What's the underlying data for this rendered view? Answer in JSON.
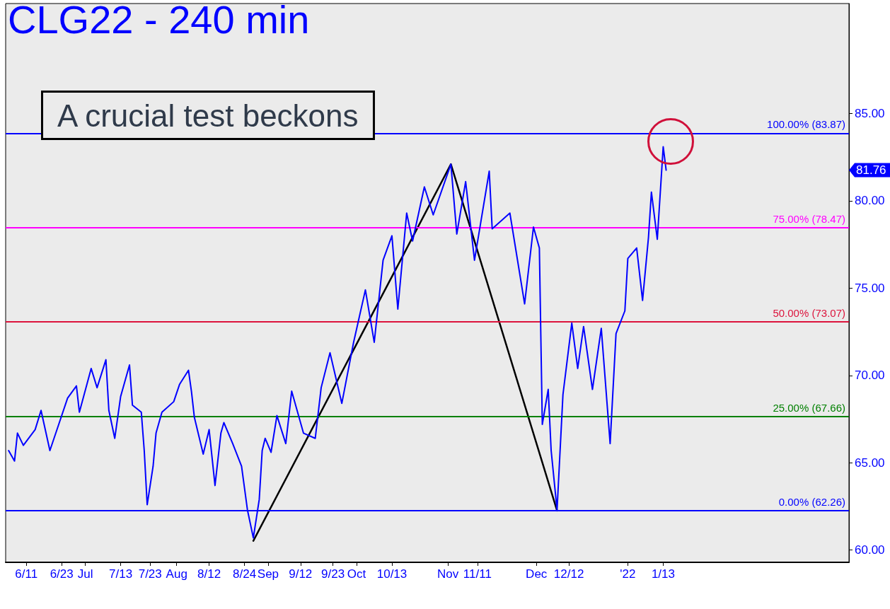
{
  "chart_data": {
    "type": "line",
    "title": "CLG22 - 240 min",
    "annotations": [
      "A crucial test beckons",
      "81.76"
    ],
    "xlim": [
      "2021-06-04",
      "2022-03-17"
    ],
    "xticks": [
      {
        "value": "2021-06-11",
        "label": "6/11"
      },
      {
        "value": "2021-06-23",
        "label": "6/23"
      },
      {
        "value": "2021-07-01",
        "label": "Jul"
      },
      {
        "value": "2021-07-13",
        "label": "7/13"
      },
      {
        "value": "2021-07-23",
        "label": "7/23"
      },
      {
        "value": "2021-08-01",
        "label": "Aug"
      },
      {
        "value": "2021-08-12",
        "label": "8/12"
      },
      {
        "value": "2021-08-24",
        "label": "8/24"
      },
      {
        "value": "2021-09-01",
        "label": "Sep"
      },
      {
        "value": "2021-09-12",
        "label": "9/12"
      },
      {
        "value": "2021-09-23",
        "label": "9/23"
      },
      {
        "value": "2021-10-01",
        "label": "Oct"
      },
      {
        "value": "2021-10-13",
        "label": "10/13"
      },
      {
        "value": "2021-11-01",
        "label": "Nov"
      },
      {
        "value": "2021-11-11",
        "label": "11/11"
      },
      {
        "value": "2021-12-01",
        "label": "Dec"
      },
      {
        "value": "2021-12-12",
        "label": "12/12"
      },
      {
        "value": "2022-01-01",
        "label": "'22"
      },
      {
        "value": "2022-01-13",
        "label": "1/13"
      }
    ],
    "ylim": [
      59.3,
      91.3
    ],
    "yticks": [
      {
        "value": 60,
        "label": "60.00"
      },
      {
        "value": 65,
        "label": "65.00"
      },
      {
        "value": 70,
        "label": "70.00"
      },
      {
        "value": 75,
        "label": "75.00"
      },
      {
        "value": 80,
        "label": "80.00"
      },
      {
        "value": 85,
        "label": "85.00"
      }
    ],
    "series": [
      {
        "color": "#0000ff",
        "x": [
          "2021-06-05",
          "2021-06-07",
          "2021-06-08",
          "2021-06-10",
          "2021-06-14",
          "2021-06-16",
          "2021-06-19",
          "2021-06-22",
          "2021-06-25",
          "2021-06-28",
          "2021-06-29",
          "2021-07-03",
          "2021-07-05",
          "2021-07-08",
          "2021-07-09",
          "2021-07-11",
          "2021-07-13",
          "2021-07-16",
          "2021-07-17",
          "2021-07-20",
          "2021-07-21",
          "2021-07-22",
          "2021-07-24",
          "2021-07-25",
          "2021-07-27",
          "2021-07-31",
          "2021-08-02",
          "2021-08-05",
          "2021-08-06",
          "2021-08-07",
          "2021-08-10",
          "2021-08-12",
          "2021-08-14",
          "2021-08-16",
          "2021-08-17",
          "2021-08-20",
          "2021-08-23",
          "2021-08-25",
          "2021-08-27",
          "2021-08-29",
          "2021-08-30",
          "2021-08-31",
          "2021-09-02",
          "2021-09-04",
          "2021-09-07",
          "2021-09-09",
          "2021-09-13",
          "2021-09-17",
          "2021-09-19",
          "2021-09-22",
          "2021-09-26",
          "2021-09-30",
          "2021-10-04",
          "2021-10-07",
          "2021-10-10",
          "2021-10-13",
          "2021-10-15",
          "2021-10-18",
          "2021-10-20",
          "2021-10-24",
          "2021-10-27",
          "2021-11-02",
          "2021-11-04",
          "2021-11-07",
          "2021-11-10",
          "2021-11-15",
          "2021-11-16",
          "2021-11-22",
          "2021-11-27",
          "2021-11-30",
          "2021-12-02",
          "2021-12-03",
          "2021-12-05",
          "2021-12-06",
          "2021-12-08",
          "2021-12-10",
          "2021-12-13",
          "2021-12-15",
          "2021-12-17",
          "2021-12-20",
          "2021-12-23",
          "2021-12-26",
          "2021-12-28",
          "2021-12-31",
          "2022-01-01",
          "2022-01-04",
          "2022-01-06",
          "2022-01-08",
          "2022-01-09",
          "2022-01-11",
          "2022-01-13",
          "2022-01-14"
        ],
        "values": [
          65.7,
          65.1,
          66.7,
          66.0,
          66.9,
          68.0,
          65.7,
          67.2,
          68.7,
          69.4,
          67.9,
          70.4,
          69.3,
          70.9,
          68.0,
          66.4,
          68.8,
          70.6,
          68.3,
          67.9,
          65.7,
          62.6,
          64.8,
          66.7,
          67.9,
          68.5,
          69.5,
          70.3,
          69.1,
          67.6,
          65.5,
          66.9,
          63.7,
          66.7,
          67.3,
          66.1,
          64.8,
          62.3,
          60.7,
          62.9,
          65.7,
          66.4,
          65.6,
          67.7,
          66.1,
          69.1,
          66.7,
          66.4,
          69.3,
          71.3,
          68.4,
          71.9,
          74.9,
          71.9,
          76.6,
          78.0,
          73.8,
          79.3,
          77.7,
          80.8,
          79.2,
          82.1,
          78.1,
          81.1,
          76.6,
          81.7,
          78.4,
          79.3,
          74.1,
          78.5,
          77.3,
          67.2,
          69.2,
          65.7,
          62.3,
          68.9,
          73.0,
          70.4,
          72.8,
          69.2,
          72.7,
          66.1,
          72.4,
          73.7,
          76.7,
          77.3,
          74.3,
          77.9,
          80.5,
          77.8,
          83.1,
          81.76
        ]
      },
      {
        "color": "#000000",
        "x": [
          "2021-08-27",
          "2021-11-02",
          "2021-12-08"
        ],
        "values": [
          60.53,
          82.1,
          62.26
        ]
      }
    ],
    "ref_lines": [
      {
        "axis": "y",
        "value": 83.87,
        "label": "100.00% (83.87)",
        "color": "#0000ff"
      },
      {
        "axis": "y",
        "value": 78.47,
        "label": "75.00% (78.47)",
        "color": "#ff00ff"
      },
      {
        "axis": "y",
        "value": 73.07,
        "label": "50.00% (73.07)",
        "color": "#dc143c"
      },
      {
        "axis": "y",
        "value": 67.66,
        "label": "25.00% (67.66)",
        "color": "#008000"
      },
      {
        "axis": "y",
        "value": 62.26,
        "label": "0.00% (62.26)",
        "color": "#0000ff"
      }
    ],
    "marker": "none",
    "line_style": "solid"
  }
}
